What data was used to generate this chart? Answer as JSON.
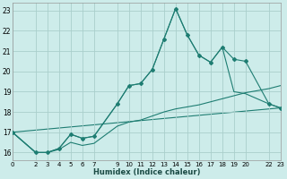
{
  "xlabel": "Humidex (Indice chaleur)",
  "bg_color": "#cdecea",
  "grid_color": "#aacfcc",
  "line_color": "#1e7d72",
  "xlim": [
    0,
    23
  ],
  "ylim": [
    15.6,
    23.4
  ],
  "xtick_pos": [
    0,
    2,
    3,
    4,
    5,
    6,
    7,
    9,
    10,
    11,
    12,
    13,
    14,
    15,
    16,
    17,
    18,
    19,
    20,
    22,
    23
  ],
  "ytick_pos": [
    16,
    17,
    18,
    19,
    20,
    21,
    22,
    23
  ],
  "line_main_x": [
    0,
    2,
    3,
    4,
    5,
    6,
    7,
    9,
    10,
    11,
    12,
    13,
    14,
    15,
    16,
    17,
    18,
    19,
    20,
    22,
    23
  ],
  "line_main_y": [
    17.0,
    16.0,
    16.0,
    16.2,
    16.9,
    16.7,
    16.8,
    18.4,
    19.3,
    19.4,
    20.1,
    21.6,
    23.1,
    21.8,
    20.8,
    20.45,
    21.2,
    20.6,
    20.5,
    18.4,
    18.2
  ],
  "line2_x": [
    0,
    2,
    3,
    4,
    5,
    6,
    7,
    9,
    10,
    11,
    12,
    13,
    14,
    15,
    16,
    17,
    18,
    19,
    20,
    22,
    23
  ],
  "line2_y": [
    17.0,
    16.0,
    16.0,
    16.2,
    16.9,
    16.7,
    16.8,
    18.4,
    19.3,
    19.4,
    20.1,
    21.6,
    23.1,
    21.8,
    20.8,
    20.45,
    21.2,
    19.0,
    18.9,
    18.4,
    18.2
  ],
  "line3_x": [
    0,
    2,
    3,
    4,
    5,
    6,
    7,
    9,
    10,
    11,
    12,
    13,
    14,
    15,
    16,
    17,
    18,
    19,
    20,
    22,
    23
  ],
  "line3_y": [
    17.0,
    16.0,
    16.0,
    16.15,
    16.5,
    16.35,
    16.45,
    17.3,
    17.5,
    17.6,
    17.8,
    18.0,
    18.15,
    18.25,
    18.35,
    18.5,
    18.65,
    18.8,
    18.95,
    19.15,
    19.3
  ],
  "line4_x": [
    0,
    23
  ],
  "line4_y": [
    17.0,
    18.2
  ]
}
